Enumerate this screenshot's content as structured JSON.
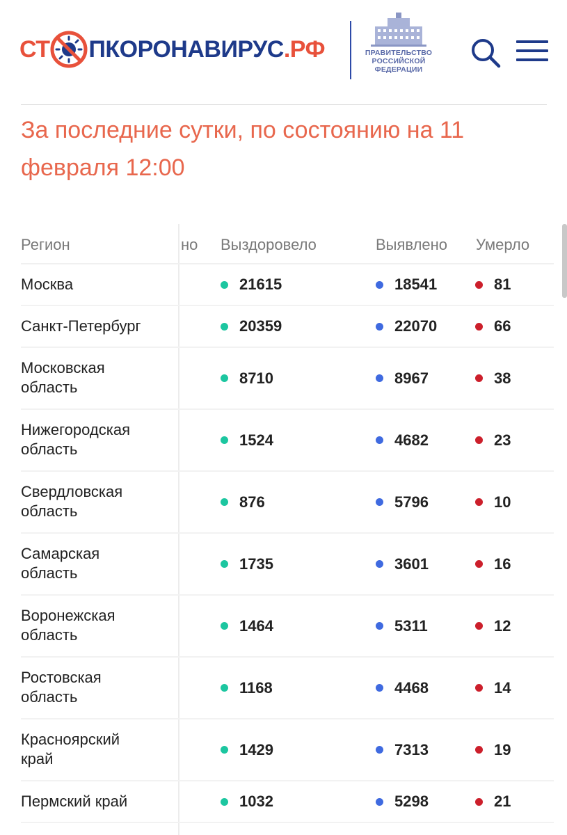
{
  "header": {
    "logo_part1": "СТ",
    "logo_part2": "ПКОРОНАВИРУС",
    "logo_part3": ".РФ",
    "logo_icon": "virus-crossed-icon",
    "gov_line1": "ПРАВИТЕЛЬСТВО",
    "gov_line2": "РОССИЙСКОЙ",
    "gov_line3": "ФЕДЕРАЦИИ",
    "gov_icon": "government-building-icon",
    "search_icon": "search-icon",
    "menu_icon": "hamburger-menu-icon"
  },
  "title": "За последние сутки, по состоянию на 11 февраля 12:00",
  "colors": {
    "recovered": "#1cc6a0",
    "detected": "#3f6ae0",
    "died": "#cc1f2b",
    "title": "#e8674d",
    "brand_blue": "#1e3a8a",
    "brand_red": "#e8513b"
  },
  "table": {
    "headers": {
      "region": "Регион",
      "partial": "но",
      "recovered": "Выздоровело",
      "detected": "Выявлено",
      "died": "Умерло"
    },
    "rows": [
      {
        "region": "Москва",
        "recovered": "21615",
        "detected": "18541",
        "died": "81"
      },
      {
        "region": "Санкт-Петербург",
        "recovered": "20359",
        "detected": "22070",
        "died": "66"
      },
      {
        "region": "Московская\nобласть",
        "recovered": "8710",
        "detected": "8967",
        "died": "38"
      },
      {
        "region": "Нижегородская\nобласть",
        "recovered": "1524",
        "detected": "4682",
        "died": "23"
      },
      {
        "region": "Свердловская\nобласть",
        "recovered": "876",
        "detected": "5796",
        "died": "10"
      },
      {
        "region": "Самарская\nобласть",
        "recovered": "1735",
        "detected": "3601",
        "died": "16"
      },
      {
        "region": "Воронежская\nобласть",
        "recovered": "1464",
        "detected": "5311",
        "died": "12"
      },
      {
        "region": "Ростовская\nобласть",
        "recovered": "1168",
        "detected": "4468",
        "died": "14"
      },
      {
        "region": "Красноярский\nкрай",
        "recovered": "1429",
        "detected": "7313",
        "died": "19"
      },
      {
        "region": "Пермский край",
        "recovered": "1032",
        "detected": "5298",
        "died": "21"
      }
    ]
  }
}
